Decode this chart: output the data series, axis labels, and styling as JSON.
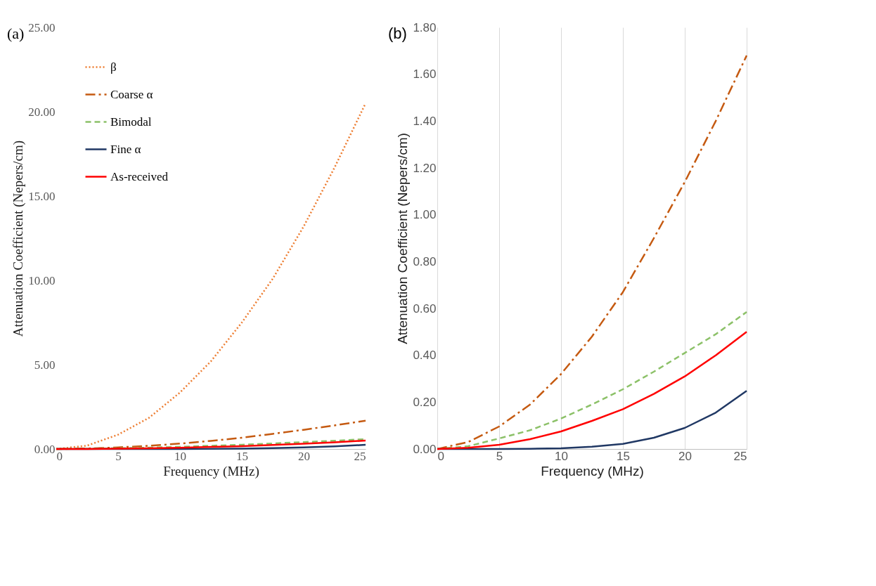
{
  "chart_data": [
    {
      "type": "line",
      "title": "(a)",
      "xlabel": "Frequency (MHz)",
      "ylabel": "Attenuation Coefficient (Nepers/cm)",
      "x": [
        0,
        2.5,
        5,
        7.5,
        10,
        12.5,
        15,
        17.5,
        20,
        22.5,
        25
      ],
      "xlim": [
        0,
        25
      ],
      "xticks": [
        0,
        5,
        10,
        15,
        20,
        25
      ],
      "ylim": [
        0,
        25
      ],
      "yticks": [
        {
          "value": 0,
          "label": "0.00"
        },
        {
          "value": 5,
          "label": "5.00"
        },
        {
          "value": 10,
          "label": "10.00"
        },
        {
          "value": 15,
          "label": "15.00"
        },
        {
          "value": 20,
          "label": "20.00"
        },
        {
          "value": 25,
          "label": "25.00"
        }
      ],
      "grid": false,
      "legend": "top left",
      "series": [
        {
          "name": "β",
          "color": "#ed7d31",
          "line_style": "dotted",
          "values": [
            0,
            0.2,
            0.85,
            1.85,
            3.35,
            5.2,
            7.5,
            10.1,
            13.2,
            16.7,
            20.5
          ]
        },
        {
          "name": "Coarse α",
          "color": "#c55a11",
          "line_style": "dashdot",
          "values": [
            0,
            0.03,
            0.096,
            0.19,
            0.32,
            0.48,
            0.67,
            0.9,
            1.14,
            1.4,
            1.68
          ]
        },
        {
          "name": "Bimodal",
          "color": "#8cc168",
          "line_style": "dashed",
          "values": [
            0,
            0.012,
            0.045,
            0.08,
            0.13,
            0.19,
            0.255,
            0.33,
            0.41,
            0.49,
            0.585
          ]
        },
        {
          "name": "Fine α",
          "color": "#203864",
          "line_style": "solid",
          "values": [
            0,
            0,
            0,
            0.001,
            0.003,
            0.01,
            0.022,
            0.048,
            0.09,
            0.155,
            0.248
          ]
        },
        {
          "name": "As-received",
          "color": "#ff0000",
          "line_style": "solid",
          "values": [
            0,
            0.005,
            0.018,
            0.042,
            0.075,
            0.12,
            0.17,
            0.235,
            0.31,
            0.4,
            0.5
          ]
        }
      ]
    },
    {
      "type": "line",
      "title": "(b)",
      "xlabel": "Frequency (MHz)",
      "ylabel": "Attenuation Coefficient (Nepers/cm)",
      "x": [
        0,
        2.5,
        5,
        7.5,
        10,
        12.5,
        15,
        17.5,
        20,
        22.5,
        25
      ],
      "xlim": [
        0,
        25
      ],
      "xticks": [
        0,
        5,
        10,
        15,
        20,
        25
      ],
      "ylim": [
        0,
        1.8
      ],
      "yticks": [
        {
          "value": 0,
          "label": "0.00"
        },
        {
          "value": 0.2,
          "label": "0.20"
        },
        {
          "value": 0.4,
          "label": "0.40"
        },
        {
          "value": 0.6,
          "label": "0.60"
        },
        {
          "value": 0.8,
          "label": "0.80"
        },
        {
          "value": 1,
          "label": "1.00"
        },
        {
          "value": 1.2,
          "label": "1.20"
        },
        {
          "value": 1.4,
          "label": "1.40"
        },
        {
          "value": 1.6,
          "label": "1.60"
        },
        {
          "value": 1.8,
          "label": "1.80"
        }
      ],
      "grid": "x",
      "legend": "top left",
      "series": [
        {
          "name": "Coarse α",
          "color": "#c55a11",
          "line_style": "dashdot",
          "values": [
            0,
            0.03,
            0.096,
            0.19,
            0.32,
            0.48,
            0.67,
            0.9,
            1.14,
            1.4,
            1.68
          ]
        },
        {
          "name": "Bimodal",
          "color": "#8cc168",
          "line_style": "dashed",
          "values": [
            0,
            0.012,
            0.045,
            0.08,
            0.13,
            0.19,
            0.255,
            0.33,
            0.41,
            0.49,
            0.585
          ]
        },
        {
          "name": "Fine α",
          "color": "#203864",
          "line_style": "solid",
          "values": [
            0,
            0,
            0,
            0.001,
            0.003,
            0.01,
            0.022,
            0.048,
            0.09,
            0.155,
            0.248
          ]
        },
        {
          "name": "As-received",
          "color": "#ff0000",
          "line_style": "solid",
          "values": [
            0,
            0.005,
            0.018,
            0.042,
            0.075,
            0.12,
            0.17,
            0.235,
            0.31,
            0.4,
            0.5
          ]
        }
      ]
    }
  ]
}
